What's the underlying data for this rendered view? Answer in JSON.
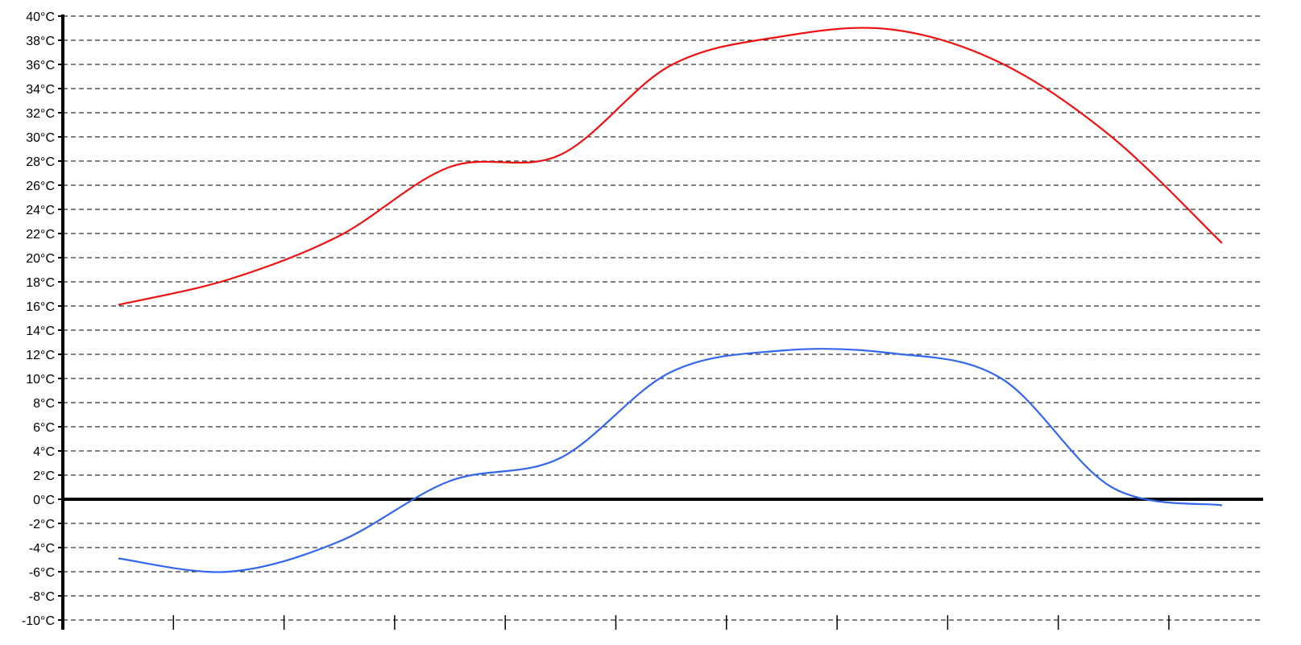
{
  "chart_data": {
    "type": "line",
    "title": "",
    "xlabel": "",
    "ylabel": "",
    "ylim": [
      -10,
      40
    ],
    "y_tick_labels": [
      "-10°C",
      "-8°C",
      "-6°C",
      "-4°C",
      "-2°C",
      "0°C",
      "2°C",
      "4°C",
      "6°C",
      "8°C",
      "10°C",
      "12°C",
      "14°C",
      "16°C",
      "18°C",
      "20°C",
      "22°C",
      "24°C",
      "26°C",
      "28°C",
      "30°C",
      "32°C",
      "34°C",
      "36°C",
      "38°C",
      "40°C"
    ],
    "y_tick_values": [
      -10,
      -8,
      -6,
      -4,
      -2,
      0,
      2,
      4,
      6,
      8,
      10,
      12,
      14,
      16,
      18,
      20,
      22,
      24,
      26,
      28,
      30,
      32,
      34,
      36,
      38,
      40
    ],
    "x_tick_count": 11,
    "grid": true,
    "legend": "none",
    "x": [
      1,
      2,
      3,
      4,
      5,
      6,
      7,
      8,
      9,
      10,
      11
    ],
    "series": [
      {
        "color": "#ee1111",
        "values": [
          16.1,
          18.2,
          21.8,
          27.5,
          28.5,
          35.9,
          38.3,
          38.9,
          36.1,
          30.0,
          21.2
        ]
      },
      {
        "color": "#3366ee",
        "values": [
          -4.9,
          -6.0,
          -3.5,
          1.5,
          3.4,
          10.5,
          12.3,
          12.1,
          10.0,
          1.0,
          -0.5
        ]
      }
    ]
  }
}
